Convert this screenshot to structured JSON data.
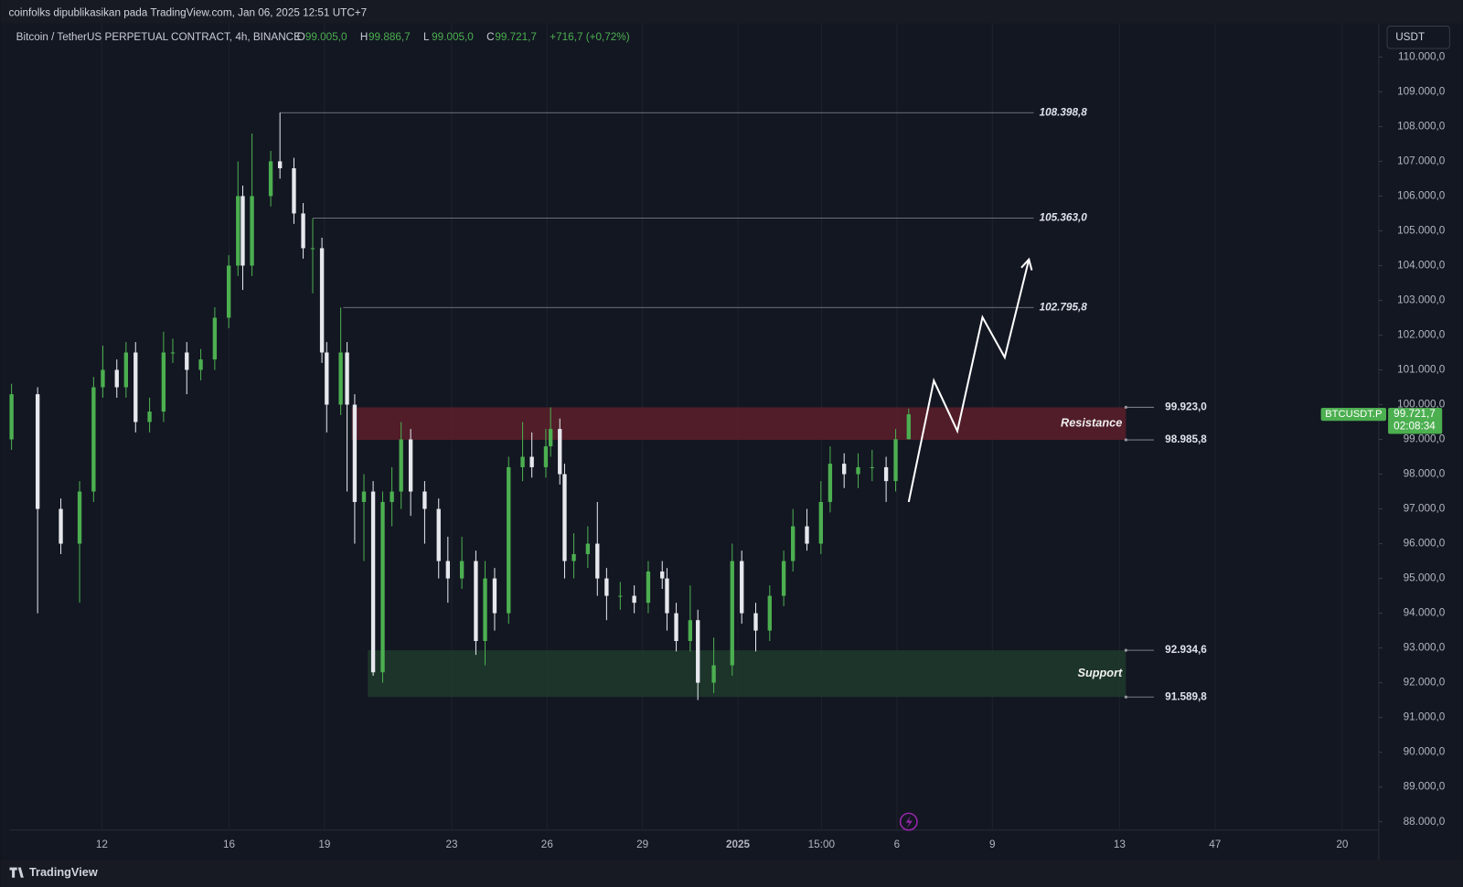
{
  "header": {
    "publisher": "coinfolks dipublikasikan pada TradingView.com, Jan 06, 2025 12:51 UTC+7",
    "brand": "TradingView"
  },
  "chart_data": {
    "type": "candlestick",
    "symbol": "Bitcoin / TetherUS PERPETUAL CONTRACT, 4h, BINANCE",
    "ohlc_legend": [
      {
        "key": "O",
        "value": "99.005,0"
      },
      {
        "key": "H",
        "value": "99.886,7"
      },
      {
        "key": "L",
        "value": "99.005,0"
      },
      {
        "key": "C",
        "value": "99.721,7"
      }
    ],
    "change": "+716,7 (+0,72%)",
    "currency": "USDT",
    "up_color": "#4caf50",
    "down_color": "#e6e8ee",
    "grid": "x",
    "xlim": [
      9.1,
      52.15
    ],
    "ylim": [
      87760,
      110970
    ],
    "xticks": [
      12,
      16,
      19,
      23,
      26,
      29,
      {
        "value": 32,
        "label": "2025"
      },
      {
        "value": 34.625,
        "label": "15:00"
      },
      {
        "value": 37,
        "label": "6"
      },
      {
        "value": 40,
        "label": "9"
      },
      {
        "value": 44,
        "label": "13"
      },
      47,
      {
        "value": 51,
        "label": "20"
      }
    ],
    "yticks": [
      {
        "value": 88000,
        "label": "88.000,0"
      },
      {
        "value": 89000,
        "label": "89.000,0"
      },
      {
        "value": 90000,
        "label": "90.000,0"
      },
      {
        "value": 91000,
        "label": "91.000,0"
      },
      {
        "value": 92000,
        "label": "92.000,0"
      },
      {
        "value": 93000,
        "label": "93.000,0"
      },
      {
        "value": 94000,
        "label": "94.000,0"
      },
      {
        "value": 95000,
        "label": "95.000,0"
      },
      {
        "value": 96000,
        "label": "96.000,0"
      },
      {
        "value": 97000,
        "label": "97.000,0"
      },
      {
        "value": 98000,
        "label": "98.000,0"
      },
      {
        "value": 99000,
        "label": "99.000,0"
      },
      {
        "value": 100000,
        "label": "100.000,0"
      },
      {
        "value": 101000,
        "label": "101.000,0"
      },
      {
        "value": 102000,
        "label": "102.000,0"
      },
      {
        "value": 103000,
        "label": "103.000,0"
      },
      {
        "value": 104000,
        "label": "104.000,0"
      },
      {
        "value": 105000,
        "label": "105.000,0"
      },
      {
        "value": 106000,
        "label": "106.000,0"
      },
      {
        "value": 107000,
        "label": "107.000,0"
      },
      {
        "value": 108000,
        "label": "108.000,0"
      },
      {
        "value": 109000,
        "label": "109.000,0"
      },
      {
        "value": 110000,
        "label": "110.000,0"
      }
    ],
    "x": [
      9.16,
      9.98,
      10.71,
      11.3,
      11.74,
      12.03,
      12.47,
      12.76,
      13.06,
      13.5,
      13.94,
      14.23,
      14.67,
      15.11,
      15.55,
      15.99,
      16.28,
      16.43,
      16.72,
      17.31,
      17.6,
      18.04,
      18.33,
      18.63,
      18.92,
      19.07,
      19.51,
      19.71,
      19.95,
      20.24,
      20.53,
      20.83,
      21.12,
      21.41,
      21.71,
      22.15,
      22.59,
      22.88,
      23.32,
      23.76,
      24.05,
      24.35,
      24.79,
      25.23,
      25.52,
      25.96,
      26.11,
      26.4,
      26.55,
      26.84,
      27.28,
      27.58,
      27.87,
      28.3,
      28.74,
      29.18,
      29.62,
      29.77,
      30.06,
      30.5,
      30.74,
      31.24,
      31.82,
      32.12,
      32.56,
      33.0,
      33.44,
      33.73,
      34.17,
      34.61,
      34.9,
      35.34,
      35.78,
      36.22,
      36.66,
      36.96,
      37.37
    ],
    "open": [
      99000,
      100300,
      97000,
      96000,
      97500,
      100500,
      101000,
      100500,
      101500,
      99500,
      99800,
      101500,
      101500,
      101000,
      101300,
      102500,
      104000,
      106000,
      104000,
      106000,
      107000,
      106800,
      105500,
      104500,
      104500,
      101500,
      100000,
      101500,
      100000,
      97200,
      97500,
      92300,
      97200,
      97500,
      99000,
      97500,
      97000,
      95500,
      95000,
      95500,
      93200,
      95000,
      94000,
      98200,
      98500,
      98200,
      98800,
      99300,
      98000,
      95500,
      95700,
      96000,
      95000,
      94500,
      94500,
      94300,
      95200,
      95000,
      94000,
      93200,
      93800,
      92000,
      92500,
      95500,
      94000,
      93500,
      94500,
      95500,
      96500,
      96000,
      97200,
      98300,
      98000,
      98200,
      98200,
      97800,
      99005
    ],
    "high": [
      100600,
      100500,
      97300,
      97800,
      100800,
      101700,
      101300,
      101800,
      101800,
      100200,
      102100,
      101900,
      101800,
      101600,
      102800,
      104300,
      107000,
      106300,
      107800,
      107300,
      108398.8,
      107100,
      105800,
      105363,
      104800,
      101800,
      102795.8,
      101800,
      100300,
      98000,
      97800,
      97500,
      98200,
      99500,
      99300,
      97800,
      97300,
      96200,
      96200,
      95800,
      95500,
      95300,
      98500,
      99500,
      99200,
      99300,
      99923,
      99600,
      98300,
      96300,
      96500,
      97200,
      95300,
      94900,
      94800,
      95500,
      95500,
      95300,
      94300,
      94800,
      94100,
      93300,
      96000,
      95800,
      94300,
      94800,
      95800,
      97000,
      97000,
      97800,
      98800,
      98600,
      98600,
      98700,
      98500,
      99300,
      99886.7
    ],
    "low": [
      98700,
      94000,
      95700,
      94300,
      97200,
      100200,
      100200,
      100200,
      99200,
      99200,
      99500,
      101200,
      100300,
      100700,
      101000,
      102200,
      103700,
      103300,
      103700,
      105700,
      106500,
      105200,
      104200,
      103200,
      101200,
      99200,
      99700,
      97500,
      96000,
      95500,
      92200,
      92000,
      96500,
      97000,
      96800,
      96000,
      95000,
      94300,
      94700,
      92800,
      92500,
      93500,
      93700,
      97800,
      97900,
      97900,
      98500,
      97700,
      95000,
      95000,
      95300,
      94500,
      93800,
      94100,
      94000,
      94000,
      94700,
      93500,
      92900,
      92900,
      91500,
      91700,
      92200,
      93700,
      92900,
      93200,
      94200,
      95200,
      95800,
      95700,
      96900,
      97600,
      97600,
      97800,
      97200,
      97500,
      99005
    ],
    "close": [
      100300,
      97000,
      96000,
      97500,
      100500,
      101000,
      100500,
      101500,
      99500,
      99800,
      101500,
      101500,
      101000,
      101300,
      102500,
      104000,
      106000,
      104000,
      106000,
      107000,
      106800,
      105500,
      104500,
      104500,
      101500,
      100000,
      101500,
      100000,
      97200,
      97500,
      92300,
      97200,
      97500,
      99000,
      97500,
      97000,
      95500,
      95000,
      95500,
      93200,
      95000,
      94000,
      98200,
      98500,
      98200,
      98800,
      99300,
      98000,
      95500,
      95700,
      96000,
      95000,
      94500,
      94500,
      94300,
      95200,
      95000,
      94000,
      93200,
      93800,
      92000,
      92500,
      95500,
      94000,
      93500,
      94500,
      95500,
      96500,
      96000,
      97200,
      98300,
      98000,
      98200,
      98200,
      97800,
      99005,
      99721.7
    ],
    "levels": [
      {
        "value": 108398.8,
        "label": "108.398,8",
        "from": 17.6
      },
      {
        "value": 105363,
        "label": "105.363,0",
        "from": 18.63
      },
      {
        "value": 102795.8,
        "label": "102.795,8",
        "from": 19.59
      }
    ],
    "levels_to": 41.3,
    "zones": [
      {
        "name": "Resistance",
        "color": "#5c1f2a",
        "from": 19.86,
        "to": 44.2,
        "low": {
          "value": 98985.8,
          "label": "98.985,8"
        },
        "high": {
          "value": 99923,
          "label": "99.923,0"
        }
      },
      {
        "name": "Support",
        "color": "#1f3a2c",
        "from": 20.36,
        "to": 44.2,
        "low": {
          "value": 91589.8,
          "label": "91.589,8"
        },
        "high": {
          "value": 92934.6,
          "label": "92.934,6"
        }
      }
    ],
    "projection": {
      "x": [
        37.37,
        38.16,
        38.9,
        39.69,
        40.39,
        41.15
      ],
      "y": [
        97201,
        100690,
        99241,
        102514,
        101360,
        104178
      ]
    },
    "price_tag": {
      "symbol": "BTCUSDT.P",
      "price": {
        "value": 99721.7,
        "label": "99.721,7"
      },
      "countdown": "02:08:34"
    }
  }
}
